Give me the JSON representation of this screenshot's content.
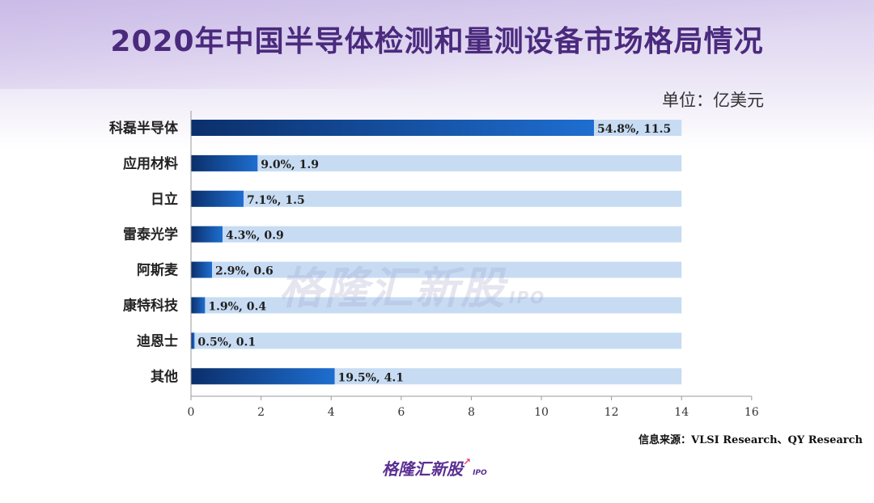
{
  "header": {
    "title": "2020年中国半导体检测和量测设备市场格局情况",
    "unit": "单位：亿美元"
  },
  "footer": {
    "source": "信息来源：VLSI Research、QY Research",
    "logo_text": "格隆汇新股",
    "logo_sub": "IPO"
  },
  "watermark": {
    "text": "格隆汇新股",
    "sub": "IPO"
  },
  "colors": {
    "bar_dark": "#0b2f6b",
    "bar_light": "#1e6ed0",
    "track": "#c7dcf3",
    "title": "#4a2a7d"
  },
  "chart_data": {
    "type": "bar",
    "orientation": "horizontal",
    "categories": [
      "科磊半导体",
      "应用材料",
      "日立",
      "雷泰光学",
      "阿斯麦",
      "康特科技",
      "迪恩士",
      "其他"
    ],
    "values": [
      11.5,
      1.9,
      1.5,
      0.9,
      0.6,
      0.4,
      0.1,
      4.1
    ],
    "percentages": [
      "54.8%",
      "9.0%",
      "7.1%",
      "4.3%",
      "2.9%",
      "1.9%",
      "0.5%",
      "19.5%"
    ],
    "data_labels": [
      "54.8%, 11.5",
      "9.0%, 1.9",
      "7.1%, 1.5",
      "4.3%, 0.9",
      "2.9%, 0.6",
      "1.9%, 0.4",
      "0.5%, 0.1",
      "19.5%, 4.1"
    ],
    "track_max": 14,
    "xlim": [
      0,
      16
    ],
    "xticks": [
      0,
      2,
      4,
      6,
      8,
      10,
      12,
      14,
      16
    ],
    "grid": false
  }
}
